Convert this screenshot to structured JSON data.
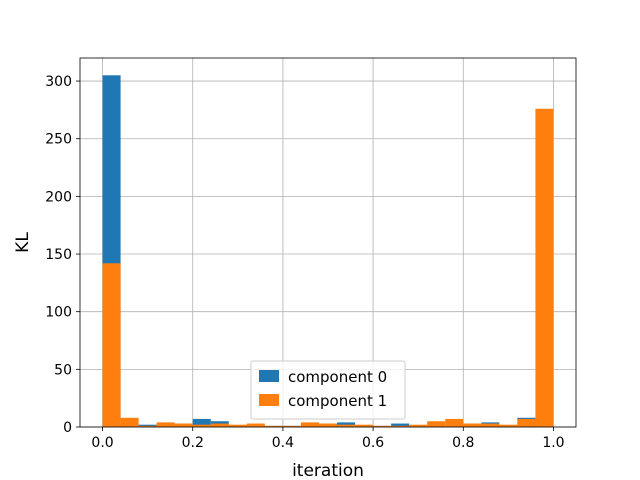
{
  "chart_data": {
    "type": "bar",
    "xlabel": "iteration",
    "ylabel": "KL",
    "xlim": [
      -0.05,
      1.05
    ],
    "ylim": [
      0,
      320
    ],
    "xticks": [
      0.0,
      0.2,
      0.4,
      0.6,
      0.8,
      1.0
    ],
    "xtick_labels": [
      "0.0",
      "0.2",
      "0.4",
      "0.6",
      "0.8",
      "1.0"
    ],
    "yticks": [
      0,
      50,
      100,
      150,
      200,
      250,
      300
    ],
    "ytick_labels": [
      "0",
      "50",
      "100",
      "150",
      "200",
      "250",
      "300"
    ],
    "grid": true,
    "legend_position": "bottom-center",
    "bin_edges": [
      0.0,
      0.04,
      0.08,
      0.12,
      0.16,
      0.2,
      0.24,
      0.28,
      0.32,
      0.36,
      0.4,
      0.44,
      0.48,
      0.52,
      0.56,
      0.6,
      0.64,
      0.68,
      0.72,
      0.76,
      0.8,
      0.84,
      0.88,
      0.92,
      0.96,
      1.0
    ],
    "series": [
      {
        "name": "component 0",
        "color": "#1f77b4",
        "values": [
          305,
          3,
          2,
          2,
          1,
          7,
          5,
          1,
          1,
          1,
          1,
          1,
          1,
          4,
          1,
          1,
          3,
          1,
          1,
          1,
          1,
          4,
          1,
          8,
          1
        ]
      },
      {
        "name": "component 1",
        "color": "#ff7f0e",
        "values": [
          142,
          8,
          1,
          4,
          3,
          2,
          3,
          2,
          3,
          1,
          1,
          4,
          3,
          2,
          2,
          1,
          1,
          2,
          5,
          7,
          3,
          3,
          2,
          7,
          276
        ]
      }
    ]
  }
}
